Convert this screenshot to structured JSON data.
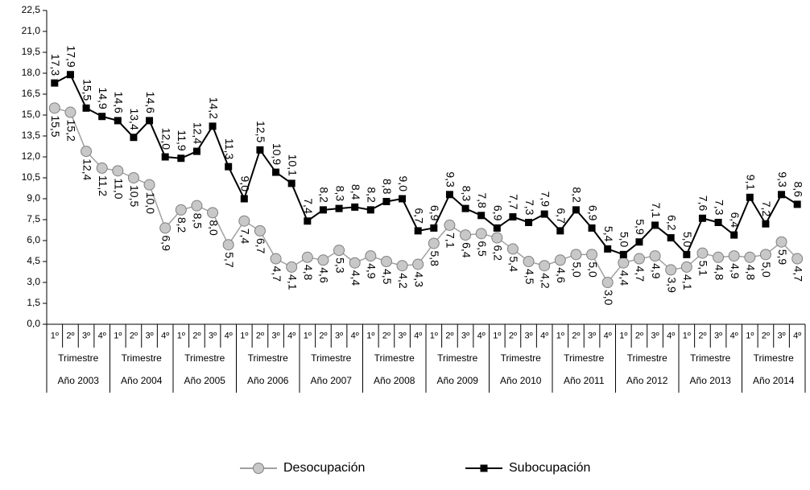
{
  "chart_data": {
    "type": "line",
    "categories": [
      "1º",
      "2º",
      "3º",
      "4º",
      "1º",
      "2º",
      "3º",
      "4º",
      "1º",
      "2º",
      "3º",
      "4º",
      "1º",
      "2º",
      "3º",
      "4º",
      "1º",
      "2º",
      "3º",
      "4º",
      "1º",
      "2º",
      "3º",
      "4º",
      "1º",
      "2º",
      "3º",
      "4º",
      "1º",
      "2º",
      "3º",
      "4º",
      "1º",
      "2º",
      "3º",
      "4º",
      "1º",
      "2º",
      "3º",
      "4º",
      "1º",
      "2º",
      "3º",
      "4º",
      "1º",
      "2º",
      "3º",
      "4º"
    ],
    "category_groups": [
      {
        "name": "Año 2003",
        "sub": "Trimestre"
      },
      {
        "name": "Año 2004",
        "sub": "Trimestre"
      },
      {
        "name": "Año 2005",
        "sub": "Trimestre"
      },
      {
        "name": "Año 2006",
        "sub": "Trimestre"
      },
      {
        "name": "Año 2007",
        "sub": "Trimestre"
      },
      {
        "name": "Año 2008",
        "sub": "Trimestre"
      },
      {
        "name": "Año 2009",
        "sub": "Trimestre"
      },
      {
        "name": "Año 2010",
        "sub": "Trimestre"
      },
      {
        "name": "Año 2011",
        "sub": "Trimestre"
      },
      {
        "name": "Año 2012",
        "sub": "Trimestre"
      },
      {
        "name": "Año 2013",
        "sub": "Trimestre"
      },
      {
        "name": "Año 2014",
        "sub": "Trimestre"
      }
    ],
    "series": [
      {
        "name": "Desocupación",
        "color": "#a0a0a0",
        "marker": "circle",
        "values": [
          15.5,
          15.2,
          12.4,
          11.2,
          11.0,
          10.5,
          10.0,
          6.9,
          8.2,
          8.5,
          8.0,
          5.7,
          7.4,
          6.7,
          4.7,
          4.1,
          4.8,
          4.6,
          5.3,
          4.4,
          4.9,
          4.5,
          4.2,
          4.3,
          5.8,
          7.1,
          6.4,
          6.5,
          6.2,
          5.4,
          4.5,
          4.2,
          4.6,
          5.0,
          5.0,
          3.0,
          4.4,
          4.7,
          4.9,
          3.9,
          4.1,
          5.1,
          4.8,
          4.9,
          4.8,
          5.0,
          5.9,
          4.7
        ],
        "value_labels": [
          "15,5",
          "15,2",
          "12,4",
          "11,2",
          "11,0",
          "10,5",
          "10,0",
          "6,9",
          "8,2",
          "8,5",
          "8,0",
          "5,7",
          "7,4",
          "6,7",
          "4,7",
          "4,1",
          "4,8",
          "4,6",
          "5,3",
          "4,4",
          "4,9",
          "4,5",
          "4,2",
          "4,3",
          "5,8",
          "7,1",
          "6,4",
          "6,5",
          "6,2",
          "5,4",
          "4,5",
          "4,2",
          "4,6",
          "5,0",
          "5,0",
          "3,0",
          "4,4",
          "4,7",
          "4,9",
          "3,9",
          "4,1",
          "5,1",
          "4,8",
          "4,9",
          "4,8",
          "5,0",
          "5,9",
          "4,7"
        ]
      },
      {
        "name": "Subocupación",
        "color": "#000000",
        "marker": "square",
        "values": [
          17.3,
          17.9,
          15.5,
          14.9,
          14.6,
          13.4,
          14.6,
          12.0,
          11.9,
          12.4,
          14.2,
          11.3,
          9.0,
          12.5,
          10.9,
          10.1,
          7.4,
          8.2,
          8.3,
          8.4,
          8.2,
          8.8,
          9.0,
          6.7,
          6.9,
          9.3,
          8.3,
          7.8,
          6.9,
          7.7,
          7.3,
          7.9,
          6.7,
          8.2,
          6.9,
          5.4,
          5.0,
          5.9,
          7.1,
          6.2,
          5.0,
          7.6,
          7.3,
          6.4,
          9.1,
          7.2,
          9.3,
          8.6
        ],
        "value_labels": [
          "17,3",
          "17,9",
          "15,5",
          "14,9",
          "14,6",
          "13,4",
          "14,6",
          "12,0",
          "11,9",
          "12,4",
          "14,2",
          "11,3",
          "9,0",
          "12,5",
          "10,9",
          "10,1",
          "7,4",
          "8,2",
          "8,3",
          "8,4",
          "8,2",
          "8,8",
          "9,0",
          "6,7",
          "6,9",
          "9,3",
          "8,3",
          "7,8",
          "6,9",
          "7,7",
          "7,3",
          "7,9",
          "6,7",
          "8,2",
          "6,9",
          "5,4",
          "5,0",
          "5,9",
          "7,1",
          "6,2",
          "5,0",
          "7,6",
          "7,3",
          "6,4",
          "9,1",
          "7,2",
          "9,3",
          "8,6"
        ]
      }
    ],
    "ylim": [
      0,
      22.5
    ],
    "yticks": [
      {
        "value": 0,
        "label": "0,0"
      },
      {
        "value": 1.5,
        "label": "1,5"
      },
      {
        "value": 3,
        "label": "3,0"
      },
      {
        "value": 4.5,
        "label": "4,5"
      },
      {
        "value": 6,
        "label": "6,0"
      },
      {
        "value": 7.5,
        "label": "7,5"
      },
      {
        "value": 9,
        "label": "9,0"
      },
      {
        "value": 10.5,
        "label": "10,5"
      },
      {
        "value": 12,
        "label": "12,0"
      },
      {
        "value": 13.5,
        "label": "13,5"
      },
      {
        "value": 15,
        "label": "15,0"
      },
      {
        "value": 16.5,
        "label": "16,5"
      },
      {
        "value": 18,
        "label": "18,0"
      },
      {
        "value": 19.5,
        "label": "19,5"
      },
      {
        "value": 21,
        "label": "21,0"
      },
      {
        "value": 22.5,
        "label": "22,5"
      }
    ],
    "grid": false,
    "legend": "bottom"
  }
}
